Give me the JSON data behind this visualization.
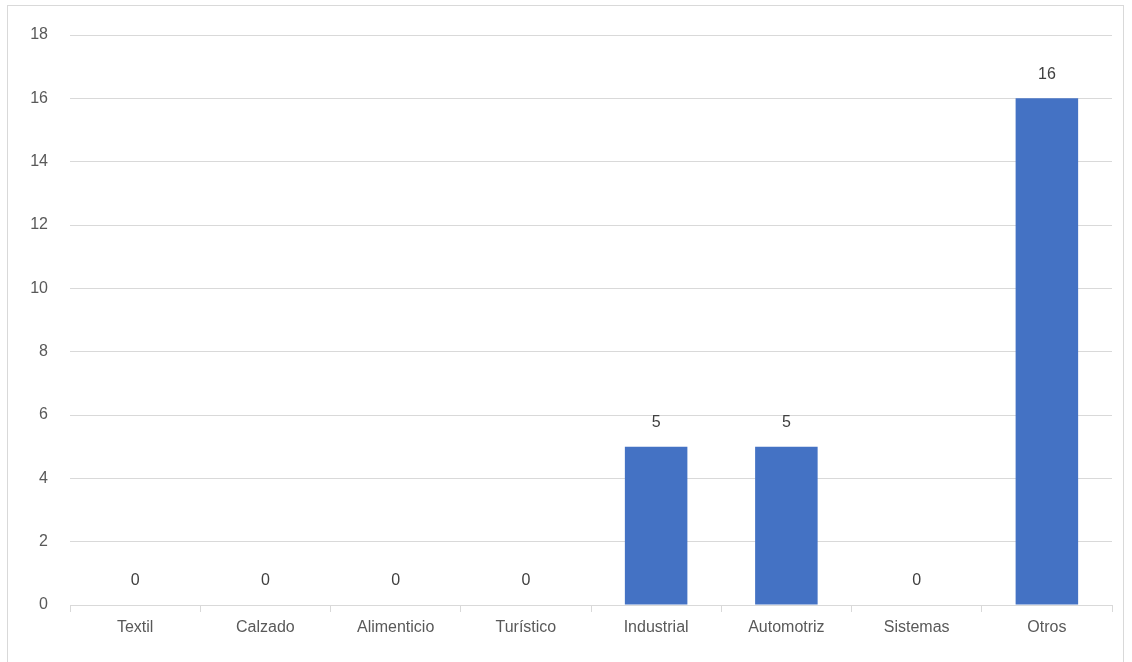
{
  "chart_data": {
    "type": "bar",
    "categories": [
      "Textil",
      "Calzado",
      "Alimenticio",
      "Turístico",
      "Industrial",
      "Automotriz",
      "Sistemas",
      "Otros"
    ],
    "values": [
      0,
      0,
      0,
      0,
      5,
      5,
      0,
      16
    ],
    "color": "#4472c4",
    "ylim": [
      0,
      18
    ],
    "yticks": [
      0,
      2,
      4,
      6,
      8,
      10,
      12,
      14,
      16,
      18
    ],
    "grid": "y",
    "data_labels": true
  }
}
